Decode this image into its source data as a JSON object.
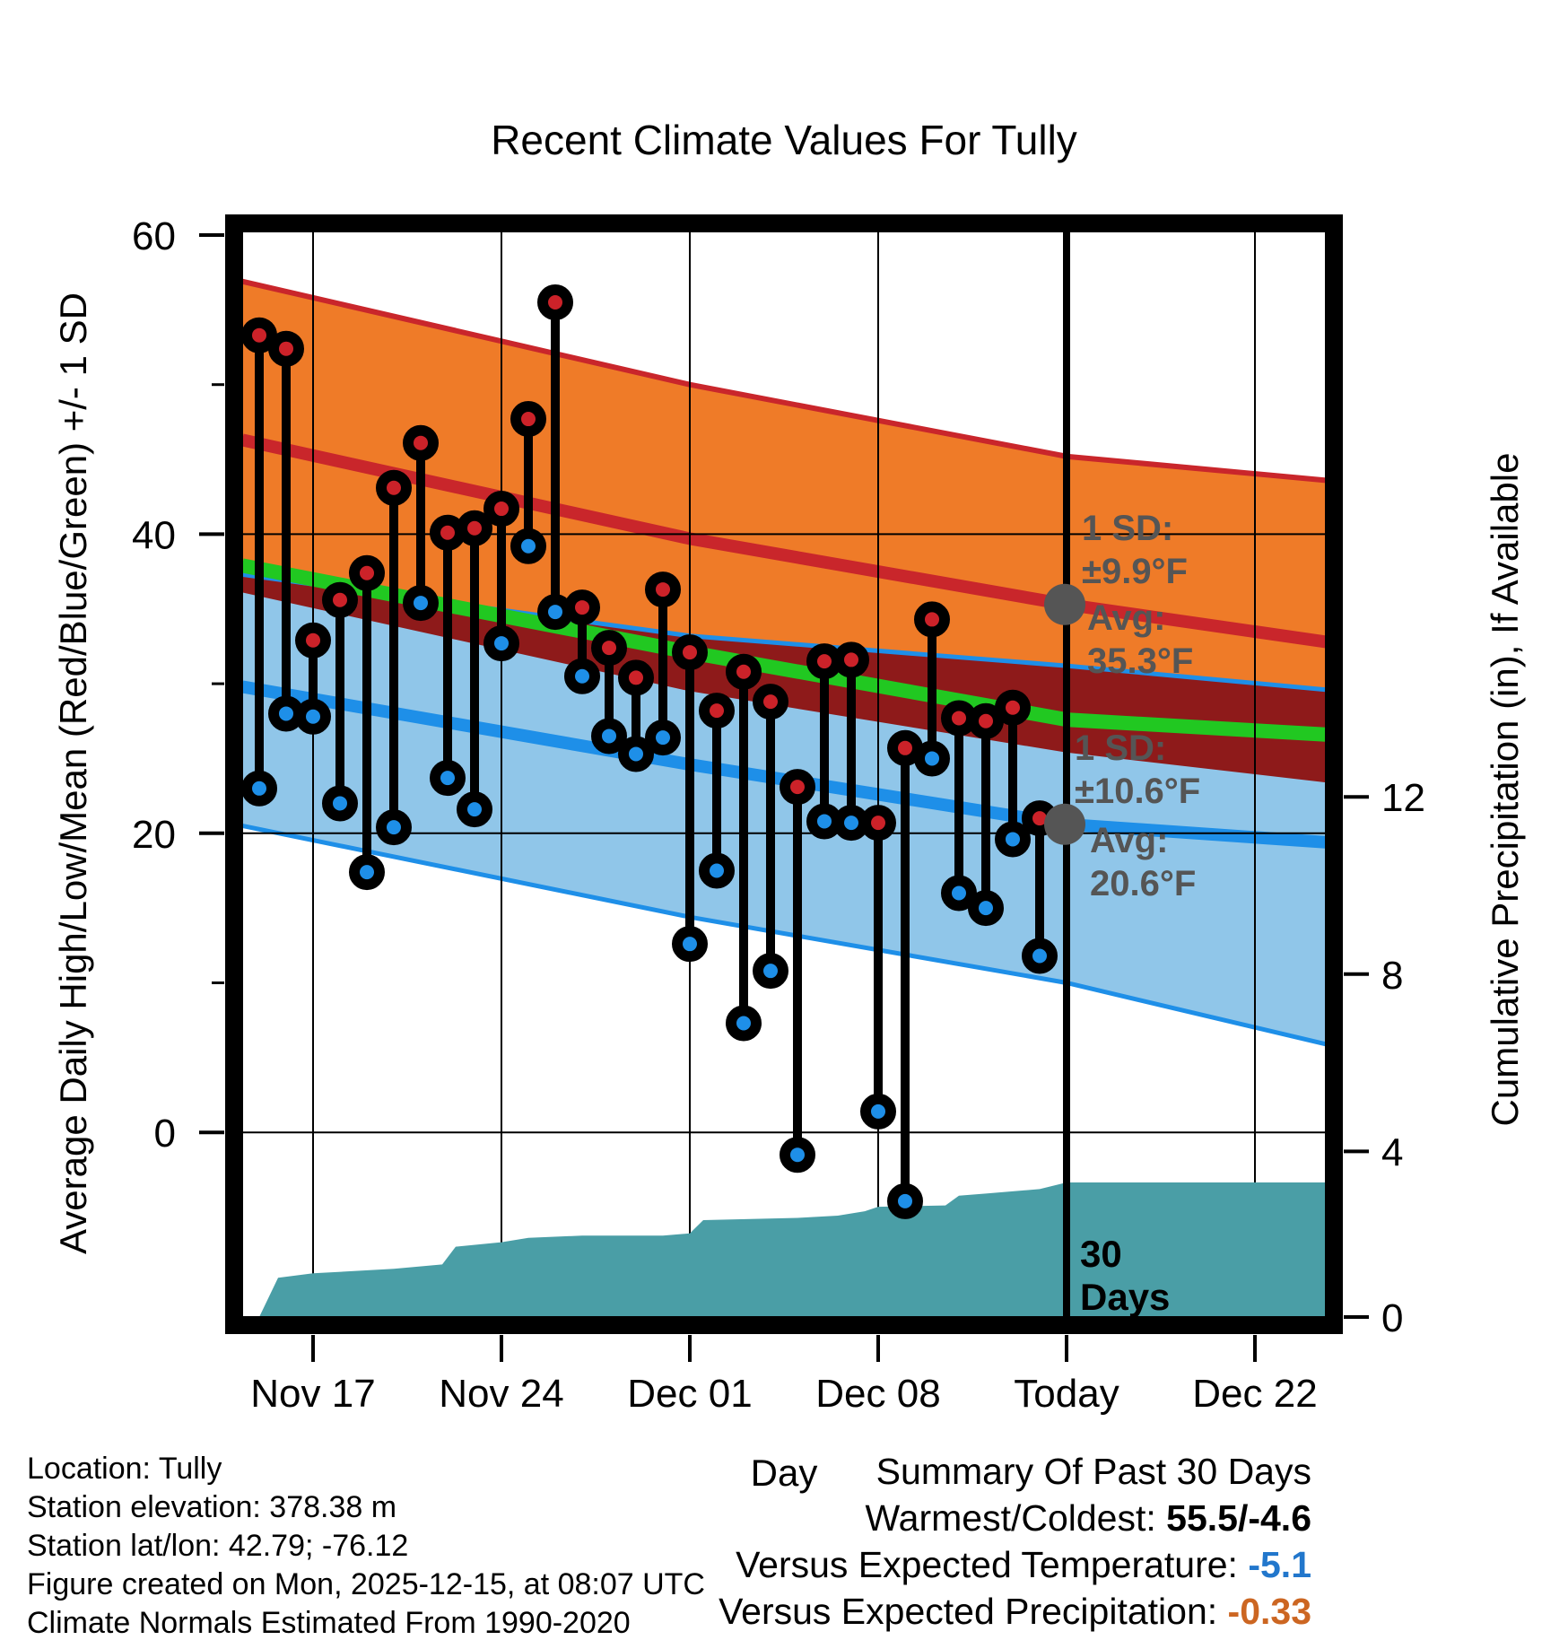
{
  "title": "Recent Climate Values For Tully",
  "axes": {
    "x_label": "Day",
    "y_left_label": "Average Daily High/Low/Mean (Red/Blue/Green) +/- 1 SD",
    "y_right_label": "Cumulative Precipitation (in), If Available",
    "x_ticks": [
      {
        "label": "Nov 17",
        "day_index": 2
      },
      {
        "label": "Nov 24",
        "day_index": 9
      },
      {
        "label": "Dec 01",
        "day_index": 16
      },
      {
        "label": "Dec 08",
        "day_index": 23
      },
      {
        "label": "Today",
        "day_index": 30
      },
      {
        "label": "Dec 22",
        "day_index": 37
      }
    ],
    "y_left_major_ticks": [
      60,
      40,
      20,
      0
    ],
    "y_left_minor_ticks": [
      50,
      30,
      10
    ],
    "y_right_ticks": [
      12,
      8,
      4,
      0
    ]
  },
  "chart_data": {
    "type": "line",
    "description": "Daily observed high/low temperature stems over climate normal bands (high band orange, low band light blue, overlap maroon, mean green) plus cumulative precipitation area (teal, right axis)",
    "title": "Recent Climate Values For Tully",
    "xlabel": "Day",
    "ylabel_left": "Average Daily High/Low/Mean (Red/Blue/Green) +/- 1 SD",
    "ylabel_right": "Cumulative Precipitation (in), If Available",
    "ylim_left_F": [
      -15,
      61
    ],
    "ylim_right_in": [
      0,
      24.5
    ],
    "today_day_index": 30,
    "days": [
      "Nov 15",
      "Nov 16",
      "Nov 17",
      "Nov 18",
      "Nov 19",
      "Nov 20",
      "Nov 21",
      "Nov 22",
      "Nov 23",
      "Nov 24",
      "Nov 25",
      "Nov 26",
      "Nov 27",
      "Nov 28",
      "Nov 29",
      "Nov 30",
      "Dec 01",
      "Dec 02",
      "Dec 03",
      "Dec 04",
      "Dec 05",
      "Dec 06",
      "Dec 07",
      "Dec 08",
      "Dec 09",
      "Dec 10",
      "Dec 11",
      "Dec 12",
      "Dec 13",
      "Dec 14"
    ],
    "series": [
      {
        "name": "daily_high_F",
        "values": [
          53.3,
          52.4,
          32.9,
          35.6,
          37.4,
          43.1,
          46.1,
          40.1,
          40.4,
          41.7,
          47.7,
          55.5,
          35.1,
          32.4,
          30.4,
          36.3,
          32.1,
          28.2,
          30.8,
          28.8,
          23.1,
          31.5,
          31.6,
          20.7,
          25.7,
          34.3,
          27.7,
          27.5,
          28.4,
          21.0
        ]
      },
      {
        "name": "daily_low_F",
        "values": [
          23.0,
          28.0,
          27.8,
          22.0,
          17.4,
          20.4,
          35.4,
          23.7,
          21.6,
          32.7,
          39.2,
          34.8,
          30.5,
          26.5,
          25.3,
          26.4,
          12.6,
          17.5,
          7.3,
          10.8,
          -1.5,
          20.8,
          20.7,
          1.4,
          -4.6,
          25.0,
          16.0,
          15.0,
          19.6,
          11.8
        ]
      }
    ],
    "normal_bands": {
      "waypoint_day_index": [
        -0.63,
        16,
        30,
        39.63
      ],
      "high_plus_1sd": [
        56.9,
        50.0,
        45.2,
        43.6
      ],
      "high_avg": [
        46.3,
        39.7,
        35.3,
        32.8
      ],
      "high_minus_1sd": [
        36.1,
        29.5,
        25.4,
        23.4
      ],
      "low_plus_1sd": [
        37.3,
        33.2,
        31.2,
        29.6
      ],
      "low_avg": [
        29.8,
        24.6,
        20.6,
        19.4
      ],
      "low_minus_1sd": [
        20.5,
        14.4,
        10.0,
        5.9
      ],
      "mean": [
        37.9,
        32.1,
        27.6,
        26.6
      ]
    },
    "cumulative_precip_in": {
      "day_index": [
        -0.63,
        0,
        0.7,
        2,
        5,
        6.8,
        7.3,
        9,
        10,
        12,
        15,
        16,
        16.5,
        20,
        21.5,
        22.5,
        23,
        25.5,
        26,
        27,
        28,
        29,
        30,
        39.63
      ],
      "values": [
        0.05,
        0.15,
        1.15,
        1.25,
        1.35,
        1.45,
        1.85,
        1.95,
        2.05,
        2.1,
        2.1,
        2.15,
        2.45,
        2.5,
        2.55,
        2.65,
        2.75,
        2.78,
        3.0,
        3.05,
        3.1,
        3.15,
        3.3,
        3.3
      ]
    },
    "legend_position": "none",
    "grid": true
  },
  "annotations": {
    "sd_high_line1": "1 SD:",
    "sd_high_line2": "±9.9°F",
    "avg_high_line1": "Avg:",
    "avg_high_line2": "35.3°F",
    "avg_high_value_F": 35.3,
    "sd_low_line1": "1 SD:",
    "sd_low_line2": "±10.6°F",
    "avg_low_line1": "Avg:",
    "avg_low_line2": "20.6°F",
    "avg_low_value_F": 20.6,
    "window_line1": "30",
    "window_line2": "Days"
  },
  "footer_left": {
    "lines": [
      "Location: Tully",
      "Station elevation: 378.38 m",
      "Station lat/lon: 42.79; -76.12",
      "Figure created on Mon, 2025-12-15, at 08:07 UTC",
      "Climate Normals Estimated From 1990-2020"
    ]
  },
  "summary": {
    "title": "Summary Of Past 30 Days",
    "rows": [
      {
        "label": "Warmest/Coldest:  ",
        "value": "55.5/-4.6",
        "value_color": "#000000",
        "bold": true
      },
      {
        "label": "Versus Expected Temperature:  ",
        "value": "-5.1",
        "value_color": "#2277CC",
        "bold": true
      },
      {
        "label": "Versus Expected Precipitation:  ",
        "value": "-0.33",
        "value_color": "#CC6622",
        "bold": true
      }
    ]
  },
  "colors": {
    "orange_band": "#EF7B28",
    "red_line": "#C9262B",
    "maroon_overlap": "#8E1A1A",
    "blue_band": "#90C6E9",
    "blue_line": "#1E8FE8",
    "green_line": "#21C821",
    "teal_precip": "#4A9EA6",
    "dot_red": "#CC2229",
    "dot_blue": "#1E8FE8",
    "stick_black": "#000000",
    "annotation_gray": "#555555"
  }
}
